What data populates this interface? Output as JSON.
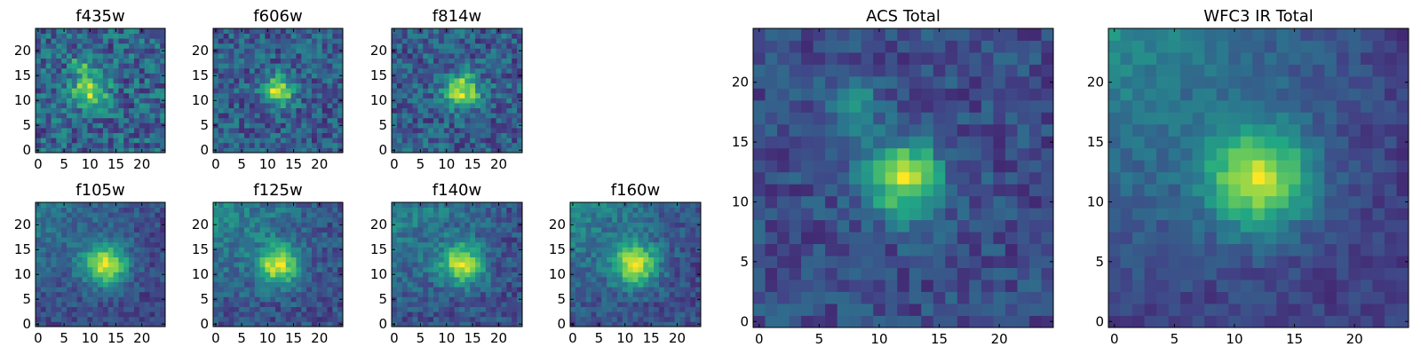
{
  "figure": {
    "colormap": "viridis",
    "colormap_stops": [
      "#440154",
      "#414487",
      "#2a788e",
      "#22a884",
      "#7ad151",
      "#fde725"
    ]
  },
  "chart_data": [
    {
      "type": "heatmap",
      "title": "f435w",
      "size": "small",
      "source_center": [
        10,
        12
      ],
      "source_sigma": 2.4,
      "secondary_source": [
        8,
        17
      ],
      "noise": 0.48,
      "gradient": 0.0,
      "x_ticks": [
        "0",
        "5",
        "10",
        "15",
        "20"
      ],
      "y_ticks": [
        "0",
        "5",
        "10",
        "15",
        "20"
      ],
      "xlim": [
        0,
        25
      ],
      "ylim": [
        0,
        25
      ]
    },
    {
      "type": "heatmap",
      "title": "f606w",
      "size": "small",
      "source_center": [
        12,
        12
      ],
      "source_sigma": 2.0,
      "noise": 0.34,
      "gradient": 0.0,
      "x_ticks": [
        "0",
        "5",
        "10",
        "15",
        "20"
      ],
      "y_ticks": [
        "0",
        "5",
        "10",
        "15",
        "20"
      ],
      "xlim": [
        0,
        25
      ],
      "ylim": [
        0,
        25
      ]
    },
    {
      "type": "heatmap",
      "title": "f814w",
      "size": "small",
      "source_center": [
        13,
        12
      ],
      "source_sigma": 2.3,
      "noise": 0.36,
      "gradient": 0.0,
      "x_ticks": [
        "0",
        "5",
        "10",
        "15",
        "20"
      ],
      "y_ticks": [
        "0",
        "5",
        "10",
        "15",
        "20"
      ],
      "xlim": [
        0,
        25
      ],
      "ylim": [
        0,
        25
      ]
    },
    {
      "type": "heatmap",
      "title": "f105w",
      "size": "small",
      "source_center": [
        13,
        12
      ],
      "source_sigma": 3.0,
      "noise": 0.22,
      "gradient": 0.35,
      "x_ticks": [
        "0",
        "5",
        "10",
        "15",
        "20"
      ],
      "y_ticks": [
        "0",
        "5",
        "10",
        "15",
        "20"
      ],
      "xlim": [
        0,
        25
      ],
      "ylim": [
        0,
        25
      ]
    },
    {
      "type": "heatmap",
      "title": "f125w",
      "size": "small",
      "source_center": [
        12,
        12
      ],
      "source_sigma": 2.8,
      "noise": 0.26,
      "gradient": 0.45,
      "x_ticks": [
        "0",
        "5",
        "10",
        "15",
        "20"
      ],
      "y_ticks": [
        "0",
        "5",
        "10",
        "15",
        "20"
      ],
      "xlim": [
        0,
        25
      ],
      "ylim": [
        0,
        25
      ]
    },
    {
      "type": "heatmap",
      "title": "f140w",
      "size": "small",
      "source_center": [
        13,
        12
      ],
      "source_sigma": 2.8,
      "noise": 0.26,
      "gradient": 0.4,
      "x_ticks": [
        "0",
        "5",
        "10",
        "15",
        "20"
      ],
      "y_ticks": [
        "0",
        "5",
        "10",
        "15",
        "20"
      ],
      "xlim": [
        0,
        25
      ],
      "ylim": [
        0,
        25
      ]
    },
    {
      "type": "heatmap",
      "title": "f160w",
      "size": "small",
      "source_center": [
        12,
        12
      ],
      "source_sigma": 3.0,
      "noise": 0.24,
      "gradient": 0.45,
      "x_ticks": [
        "0",
        "5",
        "10",
        "15",
        "20"
      ],
      "y_ticks": [
        "0",
        "5",
        "10",
        "15",
        "20"
      ],
      "xlim": [
        0,
        25
      ],
      "ylim": [
        0,
        25
      ]
    },
    {
      "type": "heatmap",
      "title": "ACS Total",
      "size": "large",
      "source_center": [
        12,
        12
      ],
      "source_sigma": 2.2,
      "secondary_source": [
        8,
        18
      ],
      "noise": 0.22,
      "gradient": 0.0,
      "x_ticks": [
        "0",
        "5",
        "10",
        "15",
        "20"
      ],
      "y_ticks": [
        "0",
        "5",
        "10",
        "15",
        "20"
      ],
      "xlim": [
        0,
        25
      ],
      "ylim": [
        0,
        25
      ]
    },
    {
      "type": "heatmap",
      "title": "WFC3 IR Total",
      "size": "large",
      "source_center": [
        12,
        12
      ],
      "source_sigma": 3.0,
      "noise": 0.14,
      "gradient": 0.5,
      "x_ticks": [
        "0",
        "5",
        "10",
        "15",
        "20"
      ],
      "y_ticks": [
        "0",
        "5",
        "10",
        "15",
        "20"
      ],
      "xlim": [
        0,
        25
      ],
      "ylim": [
        0,
        25
      ]
    }
  ]
}
